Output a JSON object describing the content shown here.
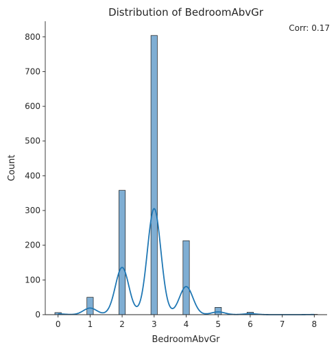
{
  "chart_data": {
    "type": "bar",
    "title": "Distribution of BedroomAbvGr",
    "xlabel": "BedroomAbvGr",
    "ylabel": "Count",
    "annotation": "Corr: 0.17",
    "xlim": [
      -0.4,
      8.4
    ],
    "ylim": [
      0,
      845
    ],
    "xticks": [
      0,
      1,
      2,
      3,
      4,
      5,
      6,
      7,
      8
    ],
    "yticks": [
      0,
      100,
      200,
      300,
      400,
      500,
      600,
      700,
      800
    ],
    "grid": false,
    "bar_color": "#7faed3",
    "bar_edge_color": "#1a1a1a",
    "kde_color": "#1f77b4",
    "bars": [
      {
        "x": 0,
        "count": 6
      },
      {
        "x": 1,
        "count": 50
      },
      {
        "x": 2,
        "count": 358
      },
      {
        "x": 3,
        "count": 804
      },
      {
        "x": 4,
        "count": 213
      },
      {
        "x": 5,
        "count": 21
      },
      {
        "x": 6,
        "count": 7
      },
      {
        "x": 8,
        "count": 1
      }
    ],
    "kde": {
      "bandwidth": 0.21,
      "scale_to_count": 1460,
      "bin_width": 0.2
    }
  }
}
